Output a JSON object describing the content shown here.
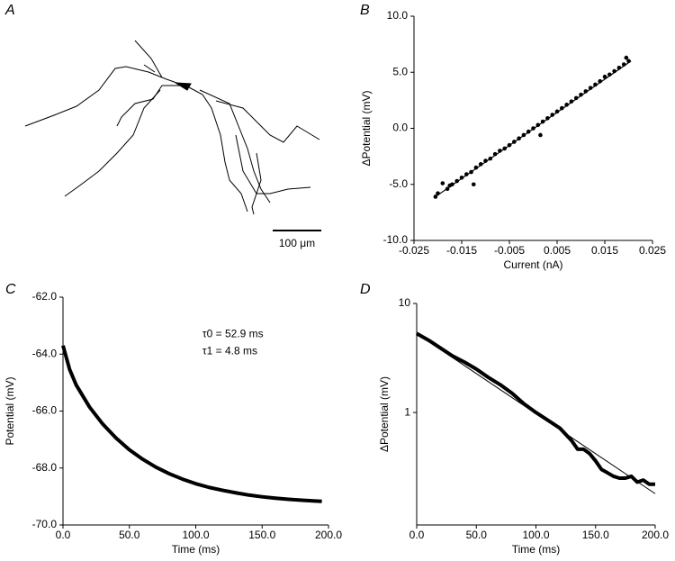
{
  "panel_a": {
    "label": "A",
    "scale_bar": "100 μm"
  },
  "chart_data": [
    {
      "type": "scatter",
      "panel": "B",
      "x_label": "Current (nA)",
      "y_label": "ΔPotential (mV)",
      "xlim": [
        -0.025,
        0.025
      ],
      "xticks": [
        -0.025,
        -0.015,
        -0.005,
        0.005,
        0.015,
        0.025
      ],
      "ylim": [
        -10,
        10
      ],
      "yticks": [
        {
          "value": 10,
          "label": "10.0"
        },
        {
          "value": 5,
          "label": "5.0"
        },
        {
          "value": 0,
          "label": "0.0"
        },
        {
          "value": -5,
          "label": "-5.0"
        },
        {
          "value": -10,
          "label": "-10.0"
        }
      ],
      "series": [
        {
          "style": "points",
          "color": "#000000",
          "x": [
            -0.0205,
            -0.02,
            -0.019,
            -0.018,
            -0.0175,
            -0.017,
            -0.016,
            -0.015,
            -0.014,
            -0.013,
            -0.0125,
            -0.012,
            -0.011,
            -0.01,
            -0.009,
            -0.008,
            -0.007,
            -0.006,
            -0.005,
            -0.004,
            -0.003,
            -0.002,
            -0.001,
            0,
            0.001,
            0.0015,
            0.002,
            0.003,
            0.004,
            0.005,
            0.006,
            0.007,
            0.008,
            0.009,
            0.01,
            0.011,
            0.012,
            0.013,
            0.014,
            0.015,
            0.016,
            0.017,
            0.018,
            0.019,
            0.0195,
            0.02
          ],
          "values": [
            -6.1,
            -5.8,
            -4.9,
            -5.4,
            -5.1,
            -5.0,
            -4.7,
            -4.4,
            -4.1,
            -3.9,
            -5.0,
            -3.5,
            -3.2,
            -2.9,
            -2.7,
            -2.3,
            -2.0,
            -1.8,
            -1.5,
            -1.2,
            -0.9,
            -0.6,
            -0.3,
            0.0,
            0.3,
            -0.6,
            0.6,
            0.9,
            1.2,
            1.5,
            1.8,
            2.1,
            2.4,
            2.7,
            3.0,
            3.3,
            3.6,
            3.9,
            4.2,
            4.6,
            4.8,
            5.1,
            5.4,
            5.7,
            6.3,
            6.0
          ]
        },
        {
          "style": "line",
          "color": "#000000",
          "width": 1.2,
          "x": [
            -0.0205,
            0.0205
          ],
          "values": [
            -6.1,
            6.0
          ]
        }
      ]
    },
    {
      "type": "line",
      "panel": "C",
      "x_label": "Time (ms)",
      "y_label": "Potential (mV)",
      "xlim": [
        0,
        200
      ],
      "xticks": [
        {
          "value": 0,
          "label": "0.0"
        },
        {
          "value": 50,
          "label": "50.0"
        },
        {
          "value": 100,
          "label": "100.0"
        },
        {
          "value": 150,
          "label": "150.0"
        },
        {
          "value": 200,
          "label": "200.0"
        }
      ],
      "ylim": [
        -70,
        -62
      ],
      "yticks": [
        {
          "value": -62,
          "label": "-62.0"
        },
        {
          "value": -64,
          "label": "-64.0"
        },
        {
          "value": -66,
          "label": "-66.0"
        },
        {
          "value": -68,
          "label": "-68.0"
        },
        {
          "value": -70,
          "label": "-70.0"
        }
      ],
      "annotations": [
        "τ0 = 52.9 ms",
        "τ1 = 4.8 ms"
      ],
      "series": [
        {
          "style": "line",
          "color": "#000000",
          "width": 4,
          "x": [
            0,
            5,
            10,
            20,
            30,
            40,
            50,
            60,
            70,
            80,
            90,
            100,
            110,
            120,
            130,
            140,
            150,
            160,
            170,
            180,
            190,
            195
          ],
          "values": [
            -63.7,
            -64.54,
            -65.09,
            -65.86,
            -66.46,
            -66.95,
            -67.36,
            -67.69,
            -67.97,
            -68.2,
            -68.39,
            -68.55,
            -68.68,
            -68.78,
            -68.87,
            -68.95,
            -69.01,
            -69.06,
            -69.1,
            -69.13,
            -69.16,
            -69.17
          ]
        }
      ]
    },
    {
      "type": "line",
      "panel": "D",
      "x_label": "Time (ms)",
      "y_label": "ΔPotential (mV)",
      "log_y": true,
      "xlim": [
        0,
        200
      ],
      "xticks": [
        {
          "value": 0,
          "label": "0.0"
        },
        {
          "value": 50,
          "label": "50.0"
        },
        {
          "value": 100,
          "label": "100.0"
        },
        {
          "value": 150,
          "label": "150.0"
        },
        {
          "value": 200,
          "label": "200.0"
        }
      ],
      "ylim": [
        0.093,
        10
      ],
      "yticks": [
        10,
        1
      ],
      "series": [
        {
          "style": "line",
          "color": "#000000",
          "width": 4,
          "x": [
            0,
            10,
            20,
            30,
            40,
            50,
            60,
            70,
            80,
            90,
            100,
            110,
            120,
            130,
            135,
            140,
            145,
            150,
            155,
            160,
            165,
            170,
            175,
            180,
            185,
            190,
            195,
            200
          ],
          "values": [
            5.3,
            4.6,
            3.9,
            3.3,
            2.9,
            2.5,
            2.1,
            1.8,
            1.5,
            1.2,
            1.0,
            0.85,
            0.72,
            0.55,
            0.46,
            0.46,
            0.42,
            0.36,
            0.3,
            0.28,
            0.26,
            0.25,
            0.25,
            0.26,
            0.23,
            0.24,
            0.22,
            0.22
          ]
        },
        {
          "style": "line",
          "color": "#000000",
          "width": 1,
          "x": [
            0,
            200
          ],
          "values": [
            5.3,
            0.18
          ]
        }
      ]
    }
  ]
}
